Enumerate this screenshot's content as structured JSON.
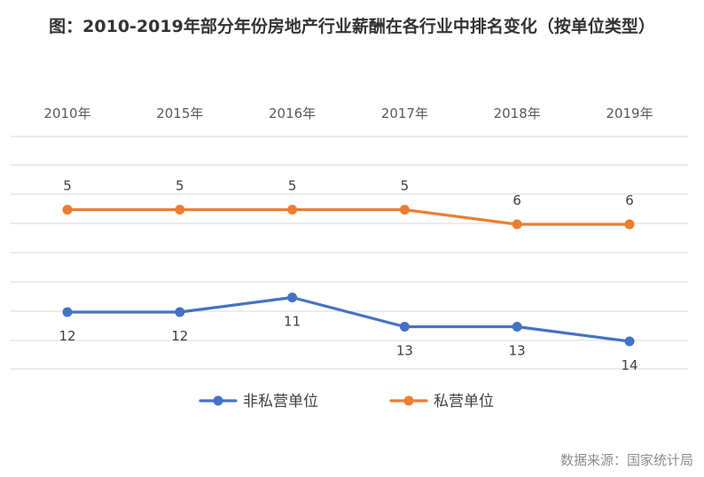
{
  "title": "图：2010-2019年部分年份房地产行业薪酬在各行业中排名变化（按单位类型）",
  "source": "数据来源：国家统计局",
  "chart_data": {
    "type": "line",
    "categories": [
      "2010年",
      "2015年",
      "2016年",
      "2017年",
      "2018年",
      "2019年"
    ],
    "series": [
      {
        "name": "非私营单位",
        "values": [
          12,
          12,
          11,
          13,
          13,
          14
        ],
        "color": "#4472C4",
        "label_position": "below"
      },
      {
        "name": "私营单位",
        "values": [
          5,
          5,
          5,
          5,
          6,
          6
        ],
        "color": "#ED7D31",
        "label_position": "above"
      }
    ],
    "y_axis": "rank, inverted (1 at top)",
    "ylim": [
      16,
      0
    ],
    "x_axis_position": "top",
    "legend_position": "bottom",
    "grid": true
  }
}
